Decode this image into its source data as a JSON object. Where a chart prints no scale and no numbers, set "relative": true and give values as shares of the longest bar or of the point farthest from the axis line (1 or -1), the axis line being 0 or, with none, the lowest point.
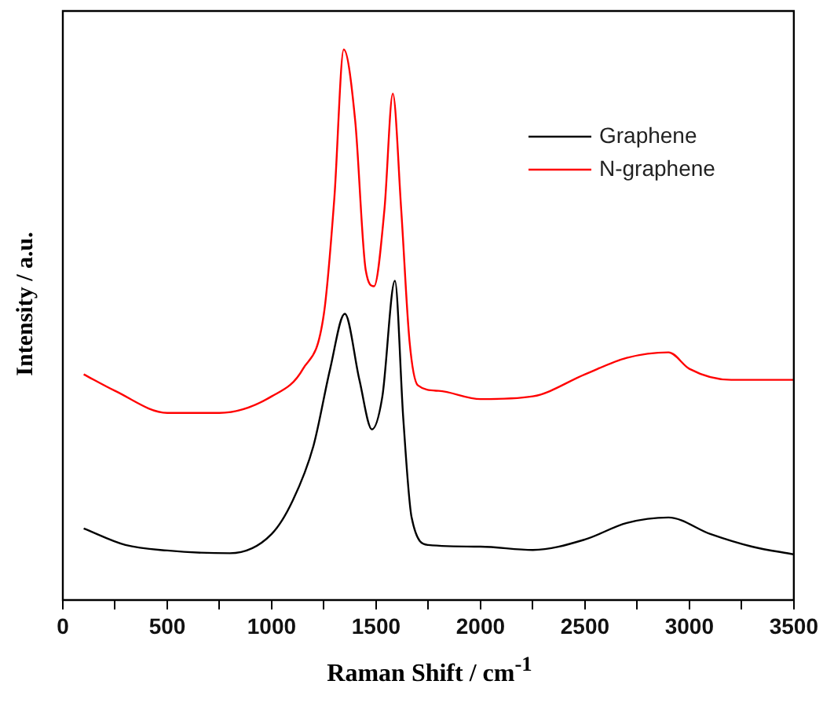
{
  "chart_data": {
    "type": "line",
    "relative": true,
    "xlabel": "Raman Shift / cm$^{-1}$",
    "ylabel": "Intensity / a.u.",
    "xlim": [
      0,
      3500
    ],
    "xticks": [
      0,
      {
        "value": 250,
        "label": null
      },
      500,
      {
        "value": 750,
        "label": null
      },
      1000,
      {
        "value": 1250,
        "label": null
      },
      1500,
      {
        "value": 1750,
        "label": null
      },
      2000,
      {
        "value": 2250,
        "label": null
      },
      2500,
      {
        "value": 2750,
        "label": null
      },
      3000,
      {
        "value": 3250,
        "label": null
      },
      3500
    ],
    "legend": "top right",
    "grid": false,
    "marker": "none",
    "series": [
      {
        "name": "Graphene",
        "color": "#000000",
        "x": [
          100,
          300,
          500,
          800,
          1000,
          1100,
          1200,
          1280,
          1350,
          1420,
          1480,
          1530,
          1590,
          1630,
          1670,
          1750,
          2000,
          2250,
          2500,
          2700,
          2900,
          3100,
          3300,
          3500
        ],
        "values": [
          0.13,
          0.1,
          0.09,
          0.085,
          0.12,
          0.18,
          0.28,
          0.42,
          0.52,
          0.4,
          0.31,
          0.37,
          0.58,
          0.33,
          0.15,
          0.1,
          0.097,
          0.091,
          0.11,
          0.14,
          0.15,
          0.12,
          0.097,
          0.083
        ]
      },
      {
        "name": "N-graphene",
        "color": "#ff0000",
        "x": [
          100,
          250,
          500,
          750,
          1000,
          1150,
          1250,
          1300,
          1345,
          1400,
          1450,
          1490,
          1540,
          1580,
          1620,
          1660,
          1700,
          1800,
          2000,
          2250,
          2500,
          2700,
          2900,
          3000,
          3200,
          3500
        ],
        "values": [
          0.41,
          0.38,
          0.34,
          0.34,
          0.37,
          0.42,
          0.52,
          0.73,
          1,
          0.87,
          0.6,
          0.57,
          0.71,
          0.92,
          0.71,
          0.47,
          0.39,
          0.38,
          0.365,
          0.37,
          0.41,
          0.44,
          0.45,
          0.42,
          0.4,
          0.4
        ]
      }
    ]
  }
}
